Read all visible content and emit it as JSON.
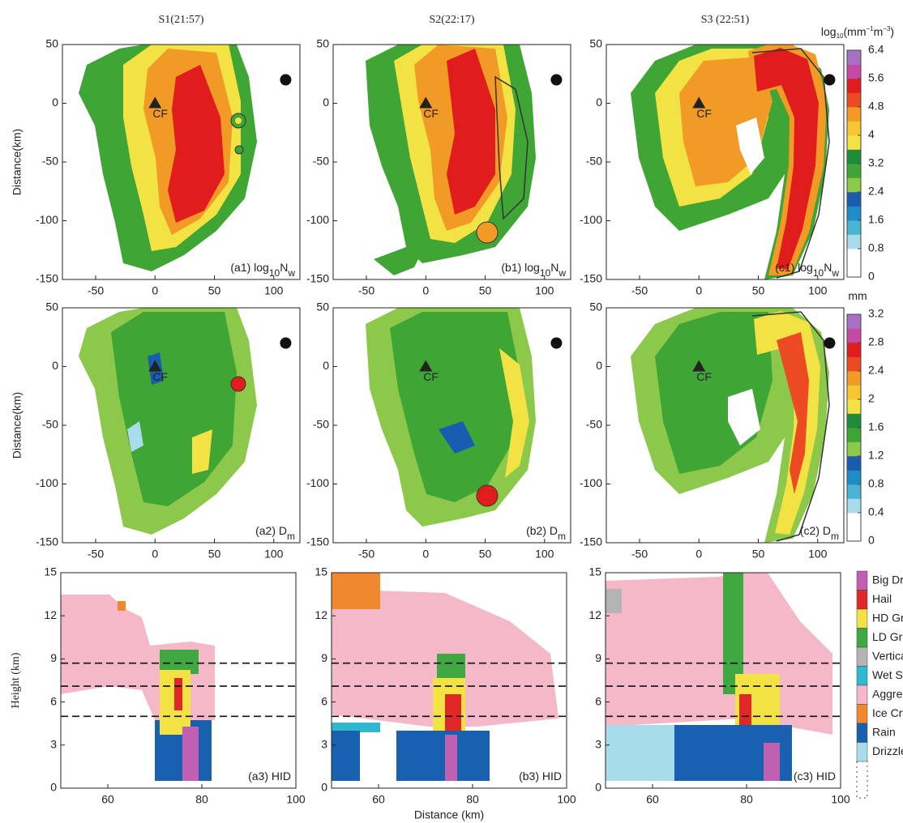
{
  "chart_data": [
    {
      "type": "contour",
      "title": "S1(21:57)",
      "ylabel": "Distance(km)",
      "xlim": [
        -78,
        122
      ],
      "ylim": [
        -150,
        50
      ],
      "xticks": [
        -50,
        0,
        50,
        100
      ],
      "yticks": [
        -150,
        -100,
        -50,
        0,
        50
      ],
      "annotation": [
        {
          "text": "(a1) log"
        },
        {
          "text": "10",
          "sub": true
        },
        {
          "text": "N"
        },
        {
          "text": "w",
          "sub": true
        }
      ],
      "cf": {
        "x": 0,
        "y": 0,
        "label": "CF"
      },
      "site": {
        "x": 110,
        "y": 20
      }
    },
    {
      "type": "contour",
      "title": "S2(22:17)",
      "xlim": [
        -78,
        122
      ],
      "ylim": [
        -150,
        50
      ],
      "xticks": [
        -50,
        0,
        50,
        100
      ],
      "yticks": [
        -150,
        -100,
        -50,
        0,
        50
      ],
      "annotation": [
        {
          "text": "(b1) log"
        },
        {
          "text": "10",
          "sub": true
        },
        {
          "text": "N"
        },
        {
          "text": "w",
          "sub": true
        }
      ],
      "cf": {
        "x": 0,
        "y": 0,
        "label": "CF"
      },
      "site": {
        "x": 110,
        "y": 20
      }
    },
    {
      "type": "contour",
      "title": "S3 (22:51)",
      "xlim": [
        -78,
        122
      ],
      "ylim": [
        -150,
        50
      ],
      "xticks": [
        -50,
        0,
        50,
        100
      ],
      "yticks": [
        -150,
        -100,
        -50,
        0,
        50
      ],
      "annotation": [
        {
          "text": "(c1) log"
        },
        {
          "text": "10",
          "sub": true
        },
        {
          "text": "N"
        },
        {
          "text": "w",
          "sub": true
        }
      ],
      "cf": {
        "x": 0,
        "y": 0,
        "label": "CF"
      },
      "site": {
        "x": 110,
        "y": 20
      },
      "colorbar": {
        "label": [
          {
            "text": "log"
          },
          {
            "text": "10",
            "sub": true
          },
          {
            "text": "(mm"
          },
          {
            "text": "−1",
            "sup": true
          },
          {
            "text": "m"
          },
          {
            "text": "−3",
            "sup": true
          },
          {
            "text": ")"
          }
        ],
        "ticks": [
          0,
          0.8,
          1.6,
          2.4,
          3.2,
          4,
          4.8,
          5.6,
          6.4
        ],
        "colors": [
          "#ffffff",
          "#ffffff",
          "#a8dcea",
          "#4ab4d4",
          "#1e8cc8",
          "#1a5cb0",
          "#8cc84a",
          "#3fa535",
          "#1e8c3a",
          "#f2e244",
          "#f8c634",
          "#f29a26",
          "#ec4a22",
          "#e01c1c",
          "#c44aa6",
          "#a870c4"
        ]
      }
    },
    {
      "type": "contour",
      "ylabel": "Distance(km)",
      "xlim": [
        -78,
        122
      ],
      "ylim": [
        -150,
        50
      ],
      "xticks": [
        -50,
        0,
        50,
        100
      ],
      "yticks": [
        -150,
        -100,
        -50,
        0,
        50
      ],
      "annotation": [
        {
          "text": "(a2) D"
        },
        {
          "text": "m",
          "sub": true
        }
      ],
      "cf": {
        "x": 0,
        "y": 0,
        "label": "CF"
      },
      "site": {
        "x": 110,
        "y": 20
      }
    },
    {
      "type": "contour",
      "xlim": [
        -78,
        122
      ],
      "ylim": [
        -150,
        50
      ],
      "xticks": [
        -50,
        0,
        50,
        100
      ],
      "yticks": [
        -150,
        -100,
        -50,
        0,
        50
      ],
      "annotation": [
        {
          "text": "(b2) D"
        },
        {
          "text": "m",
          "sub": true
        }
      ],
      "cf": {
        "x": 0,
        "y": 0,
        "label": "CF"
      },
      "site": {
        "x": 110,
        "y": 20
      }
    },
    {
      "type": "contour",
      "xlim": [
        -78,
        122
      ],
      "ylim": [
        -150,
        50
      ],
      "xticks": [
        -50,
        0,
        50,
        100
      ],
      "yticks": [
        -150,
        -100,
        -50,
        0,
        50
      ],
      "annotation": [
        {
          "text": "(c2) D"
        },
        {
          "text": "m",
          "sub": true
        }
      ],
      "cf": {
        "x": 0,
        "y": 0,
        "label": "CF"
      },
      "site": {
        "x": 110,
        "y": 20
      },
      "colorbar": {
        "label": [
          {
            "text": "mm"
          }
        ],
        "ticks": [
          0,
          0.4,
          0.8,
          1.2,
          1.6,
          2,
          2.4,
          2.8,
          3.2
        ],
        "colors": [
          "#ffffff",
          "#ffffff",
          "#a8dcea",
          "#4ab4d4",
          "#1e8cc8",
          "#1a5cb0",
          "#8cc84a",
          "#3fa535",
          "#1e8c3a",
          "#f2e244",
          "#f8c634",
          "#f29a26",
          "#ec4a22",
          "#e01c1c",
          "#c44aa6",
          "#a870c4"
        ]
      }
    },
    {
      "type": "hid",
      "ylabel": "Height (km)",
      "xlim": [
        50,
        100
      ],
      "ylim": [
        0,
        15
      ],
      "xticks": [
        60,
        80,
        100
      ],
      "yticks": [
        0,
        3,
        6,
        9,
        12,
        15
      ],
      "annotation": [
        {
          "text": "(a3) HID"
        }
      ],
      "ref_lines": [
        8.7,
        7.1,
        5.0
      ]
    },
    {
      "type": "hid",
      "xlabel": "Distance (km)",
      "xlim": [
        50,
        100
      ],
      "ylim": [
        0,
        15
      ],
      "xticks": [
        60,
        80,
        100
      ],
      "yticks": [
        0,
        3,
        6,
        9,
        12,
        15
      ],
      "annotation": [
        {
          "text": "(b3) HID"
        }
      ],
      "ref_lines": [
        8.7,
        7.1,
        5.0
      ]
    },
    {
      "type": "hid",
      "xlim": [
        50,
        100
      ],
      "ylim": [
        0,
        15
      ],
      "xticks": [
        60,
        80,
        100
      ],
      "yticks": [
        0,
        3,
        6,
        9,
        12,
        15
      ],
      "annotation": [
        {
          "text": "(c3) HID"
        }
      ],
      "ref_lines": [
        8.7,
        7.1,
        5.0
      ],
      "legend": [
        {
          "name": "Big Drop",
          "color": "#c060b0"
        },
        {
          "name": "Hail",
          "color": "#e02828"
        },
        {
          "name": "HD Grau",
          "color": "#f2e244"
        },
        {
          "name": "LD Grau",
          "color": "#40a840"
        },
        {
          "name": "Vertical",
          "color": "#b4b4b4"
        },
        {
          "name": "Wet Sno",
          "color": "#30b8d0"
        },
        {
          "name": "Aggrega",
          "color": "#f4b8c8"
        },
        {
          "name": "Ice Cryst",
          "color": "#f08830"
        },
        {
          "name": "Rain",
          "color": "#1860b0"
        },
        {
          "name": "Drizzle",
          "color": "#a8dcea"
        }
      ]
    }
  ]
}
